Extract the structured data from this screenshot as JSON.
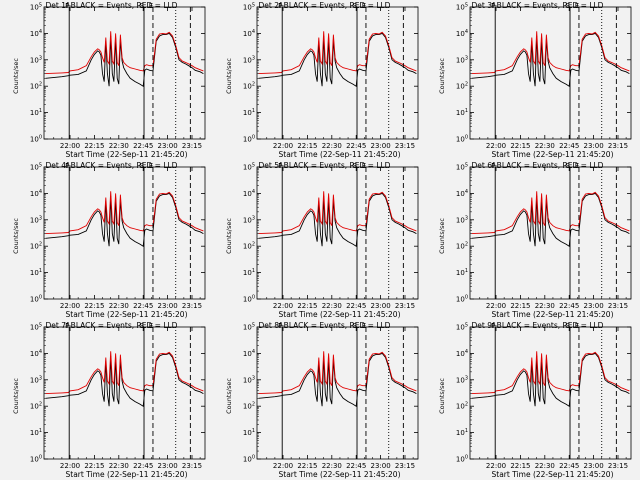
{
  "chart_data": {
    "type": "line",
    "panels": [
      {
        "title": "Det 1f-BLACK = Events, RED = LLD"
      },
      {
        "title": "Det 2f-BLACK = Events, RED = LLD"
      },
      {
        "title": "Det 3f-BLACK = Events, RED = LLD"
      },
      {
        "title": "Det 4f-BLACK = Events, RED = LLD"
      },
      {
        "title": "Det 5f-BLACK = Events, RED = LLD"
      },
      {
        "title": "Det 6f-BLACK = Events, RED = LLD"
      },
      {
        "title": "Det 7f-BLACK = Events, RED = LLD"
      },
      {
        "title": "Det 8f-BLACK = Events, RED = LLD"
      },
      {
        "title": "Det 9f-BLACK = Events, RED = LLD"
      }
    ],
    "xlabel": "Start Time (22-Sep-11 21:45:20)",
    "ylabel": "Counts/sec",
    "x_tick_labels": [
      "22:00",
      "22:15",
      "22:30",
      "22:45",
      "23:00",
      "23:15"
    ],
    "x_ticks_min": [
      15,
      30,
      45,
      60,
      75,
      90
    ],
    "xlim_min": [
      -1,
      98
    ],
    "y_scale": "log",
    "y_tick_exponents": [
      0,
      1,
      2,
      3,
      4,
      5
    ],
    "ylim": [
      1,
      100000
    ],
    "vertical_markers": [
      {
        "x_min": 14.5,
        "style": "solid",
        "label": "P"
      },
      {
        "x_min": 60.5,
        "style": "solid",
        "label": "S"
      },
      {
        "x_min": 66,
        "style": "dashed",
        "label": "E"
      },
      {
        "x_min": 80,
        "style": "dotted",
        "label": ""
      },
      {
        "x_min": 89,
        "style": "dashed",
        "label": ""
      }
    ],
    "series": [
      {
        "color": "#000000",
        "x_min": [
          0,
          10,
          14,
          15,
          20,
          25,
          28,
          30,
          32,
          33,
          34,
          35,
          36,
          37,
          38,
          39,
          40,
          41,
          42,
          43,
          44,
          45,
          46,
          47,
          48,
          50,
          52,
          55,
          58,
          60,
          61,
          62,
          64,
          66,
          68,
          70,
          72,
          74,
          76,
          78,
          80,
          82,
          84,
          86,
          88,
          90,
          92,
          95,
          97
        ],
        "y": [
          200,
          230,
          250,
          260,
          280,
          380,
          1000,
          1600,
          2200,
          2000,
          1500,
          300,
          150,
          5000,
          300,
          100,
          8000,
          300,
          150,
          7000,
          200,
          120,
          6000,
          900,
          500,
          300,
          200,
          150,
          120,
          100,
          400,
          450,
          400,
          380,
          5000,
          8000,
          9000,
          9000,
          10000,
          7000,
          3000,
          1000,
          800,
          700,
          600,
          500,
          400,
          350,
          300
        ]
      },
      {
        "color": "#e00000",
        "x_min": [
          0,
          10,
          14,
          15,
          20,
          25,
          28,
          30,
          32,
          33,
          34,
          35,
          36,
          37,
          38,
          39,
          40,
          41,
          42,
          43,
          44,
          45,
          46,
          47,
          48,
          50,
          52,
          55,
          58,
          60,
          61,
          62,
          64,
          66,
          68,
          70,
          72,
          74,
          76,
          78,
          80,
          82,
          84,
          86,
          88,
          90,
          92,
          95,
          97
        ],
        "y": [
          300,
          320,
          330,
          380,
          420,
          600,
          1300,
          2000,
          2600,
          2400,
          2000,
          1200,
          800,
          7000,
          900,
          700,
          12000,
          900,
          700,
          10000,
          800,
          600,
          9000,
          1200,
          800,
          600,
          500,
          450,
          400,
          380,
          600,
          650,
          600,
          600,
          6000,
          9500,
          10000,
          9500,
          11000,
          8000,
          3500,
          1200,
          900,
          800,
          700,
          600,
          500,
          420,
          380
        ]
      }
    ]
  }
}
